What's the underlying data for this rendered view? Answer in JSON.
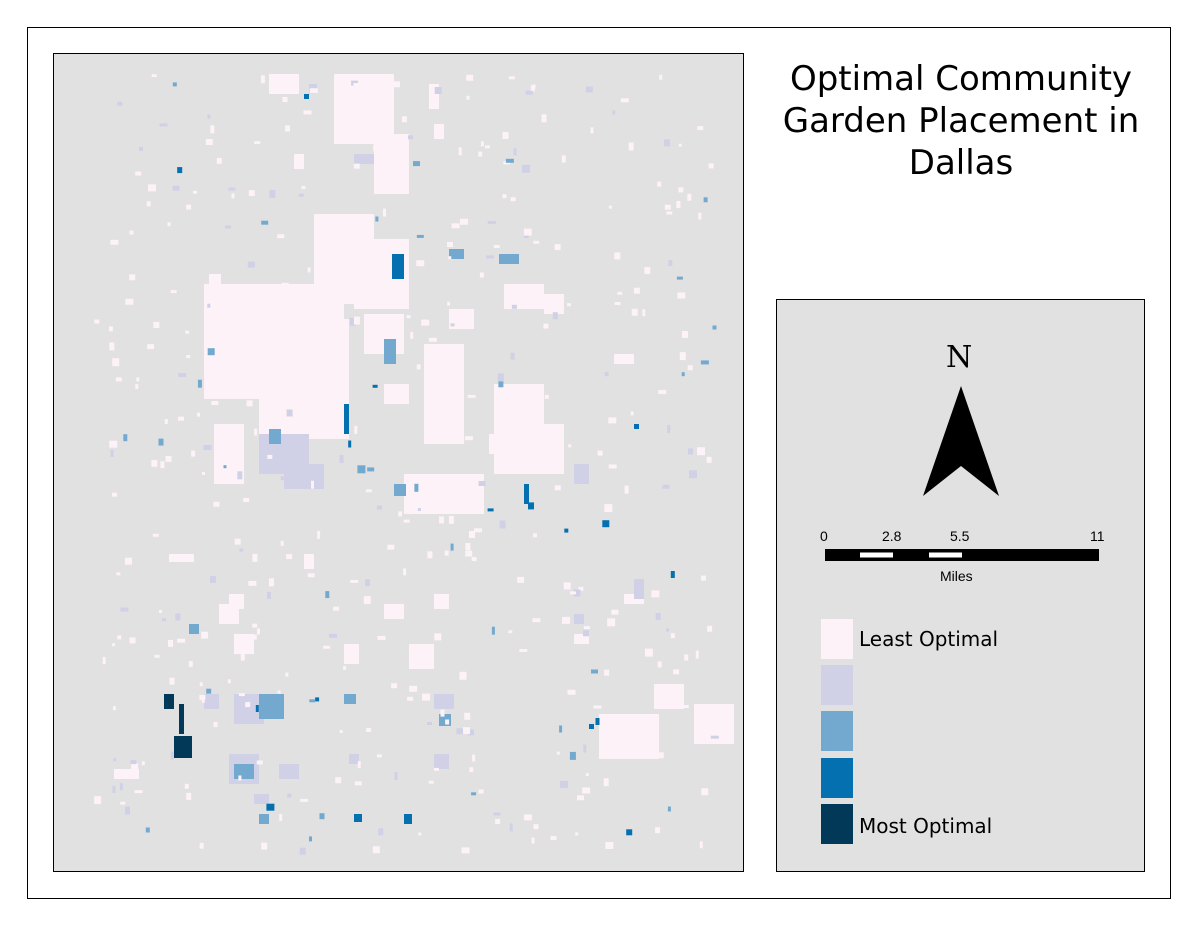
{
  "title": {
    "line1": "Optimal Community",
    "line2": "Garden Placement in",
    "line3": "Dallas"
  },
  "north_arrow": {
    "label": "N",
    "icon": "north-arrow-icon"
  },
  "scale_bar": {
    "ticks": [
      "0",
      "2.8",
      "5.5",
      "11"
    ],
    "unit": "Miles"
  },
  "legend": {
    "classes": [
      {
        "label": "Least Optimal",
        "color": "#fdf2f7"
      },
      {
        "label": "",
        "color": "#d0d1e6"
      },
      {
        "label": "",
        "color": "#74a9cf"
      },
      {
        "label": "",
        "color": "#0570b0"
      },
      {
        "label": "Most Optimal",
        "color": "#023858"
      }
    ]
  },
  "colors": {
    "map_background": "#e1e1e1",
    "no_data": "#e1e1e1"
  }
}
